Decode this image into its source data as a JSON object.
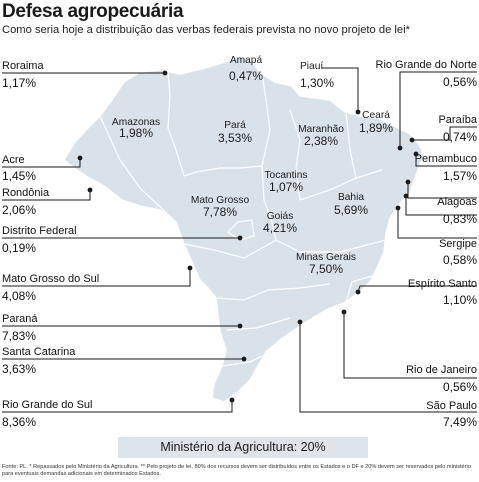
{
  "title": "Defesa agropecuária",
  "subtitle": "Como seria hoje a distribuição das verbas federais prevista no novo projeto de lei*",
  "colors": {
    "map_fill": "#d9e2e9",
    "map_stroke": "#ffffff",
    "leader": "#1a1a1a",
    "ministry_bg": "#dde5ea"
  },
  "states": [
    {
      "id": "roraima",
      "name": "Roraima",
      "value": "1,17%"
    },
    {
      "id": "amapa",
      "name": "Amapá",
      "value": "0,47%"
    },
    {
      "id": "piaui",
      "name": "Piauí",
      "value": "1,30%"
    },
    {
      "id": "rn",
      "name": "Rio Grande do Norte",
      "value": "0,56%"
    },
    {
      "id": "amazonas",
      "name": "Amazonas",
      "value": "1,98%"
    },
    {
      "id": "para",
      "name": "Pará",
      "value": "3,53%"
    },
    {
      "id": "maranhao",
      "name": "Maranhão",
      "value": "2,38%"
    },
    {
      "id": "ceara",
      "name": "Ceará",
      "value": "1,89%"
    },
    {
      "id": "paraiba",
      "name": "Paraíba",
      "value": "0,74%"
    },
    {
      "id": "acre",
      "name": "Acre",
      "value": "1,45%"
    },
    {
      "id": "pernambuco",
      "name": "Pernambuco",
      "value": "1,57%"
    },
    {
      "id": "tocantins",
      "name": "Tocantins",
      "value": "1,07%"
    },
    {
      "id": "rondonia",
      "name": "Rondônia",
      "value": "2,06%"
    },
    {
      "id": "mt",
      "name": "Mato Grosso",
      "value": "7,78%"
    },
    {
      "id": "bahia",
      "name": "Bahia",
      "value": "5,69%"
    },
    {
      "id": "alagoas",
      "name": "Alagoas",
      "value": "0,83%"
    },
    {
      "id": "goias",
      "name": "Goiás",
      "value": "4,21%"
    },
    {
      "id": "df",
      "name": "Distrito Federal",
      "value": "0,19%"
    },
    {
      "id": "sergipe",
      "name": "Sergipe",
      "value": "0,58%"
    },
    {
      "id": "mg",
      "name": "Minas Gerais",
      "value": "7,50%"
    },
    {
      "id": "ms",
      "name": "Mato Grosso do Sul",
      "value": "4,08%"
    },
    {
      "id": "es",
      "name": "Espírito Santo",
      "value": "1,10%"
    },
    {
      "id": "parana",
      "name": "Paraná",
      "value": "7,83%"
    },
    {
      "id": "sc",
      "name": "Santa Catarina",
      "value": "3,63%"
    },
    {
      "id": "rj",
      "name": "Rio de Janeiro",
      "value": "0,56%"
    },
    {
      "id": "rs",
      "name": "Rio Grande do Sul",
      "value": "8,36%"
    },
    {
      "id": "sp",
      "name": "São Paulo",
      "value": "7,49%"
    }
  ],
  "ministry": "Ministério da Agricultura: 20%",
  "footer": "Fonte: PL. * Repassados pelo Ministério da Agricultura. ** Pelo projeto de lei, 80% dos recursos devem ser distribuídos entre os Estados e o DF e 20% devem ser reservados pelo ministério para eventuais demandas adicionais em determinados Estados."
}
